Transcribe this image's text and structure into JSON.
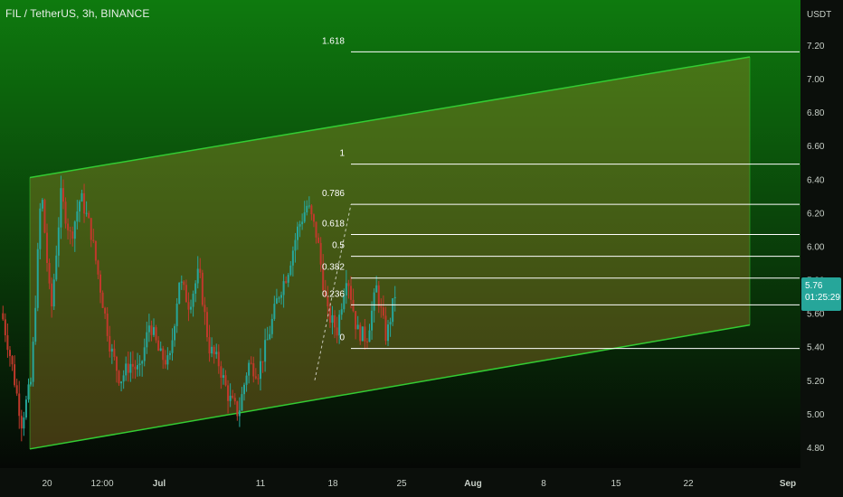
{
  "header": {
    "title": "FIL / TetherUS, 3h, BINANCE"
  },
  "axis": {
    "currency": "USDT",
    "y_ticks": [
      "7.20",
      "7.00",
      "6.80",
      "6.60",
      "6.40",
      "6.20",
      "6.00",
      "5.80",
      "5.60",
      "5.40",
      "5.20",
      "5.00",
      "4.80"
    ],
    "x_ticks": [
      "20",
      "12:00",
      "Jul",
      "11",
      "18",
      "25",
      "Aug",
      "8",
      "15",
      "22",
      "Sep"
    ]
  },
  "price_tag": {
    "price": "5.76",
    "countdown": "01:25:29"
  },
  "colors": {
    "background_top": "#0e7a0e",
    "background_bottom": "#050805",
    "channel_line": "#33cc33",
    "channel_fill": "#b38a2b",
    "fib_line": "#ffffff",
    "up_candle": "#26a69a",
    "down_candle": "#c0392b",
    "price_tag": "#26a69a"
  },
  "chart_data": {
    "type": "candlestick",
    "symbol": "FIL / TetherUS",
    "interval": "3h",
    "exchange": "BINANCE",
    "y_unit": "USDT",
    "ylim": [
      4.75,
      7.3
    ],
    "last_price": 5.76,
    "fib_levels": [
      {
        "label": "1.618",
        "price": 7.16
      },
      {
        "label": "1",
        "price": 6.49
      },
      {
        "label": "0.786",
        "price": 6.25
      },
      {
        "label": "0.618",
        "price": 6.07
      },
      {
        "label": "0.5",
        "price": 5.94
      },
      {
        "label": "0.382",
        "price": 5.81
      },
      {
        "label": "0.236",
        "price": 5.65
      },
      {
        "label": "0",
        "price": 5.39
      }
    ],
    "channel": {
      "upper": {
        "from": 6.41,
        "to": 7.13
      },
      "lower": {
        "from": 4.79,
        "to": 5.53
      }
    },
    "price_path": [
      5.6,
      5.3,
      4.95,
      5.2,
      6.35,
      5.6,
      6.3,
      6.05,
      6.3,
      6.1,
      5.75,
      5.4,
      5.2,
      5.3,
      5.25,
      5.55,
      5.35,
      5.3,
      5.8,
      5.65,
      5.85,
      5.4,
      5.3,
      5.1,
      5.0,
      5.3,
      5.25,
      5.45,
      5.7,
      5.85,
      6.1,
      6.25,
      6.05,
      5.6,
      5.5,
      5.85,
      5.5,
      5.45,
      5.75,
      5.45,
      5.75
    ]
  }
}
